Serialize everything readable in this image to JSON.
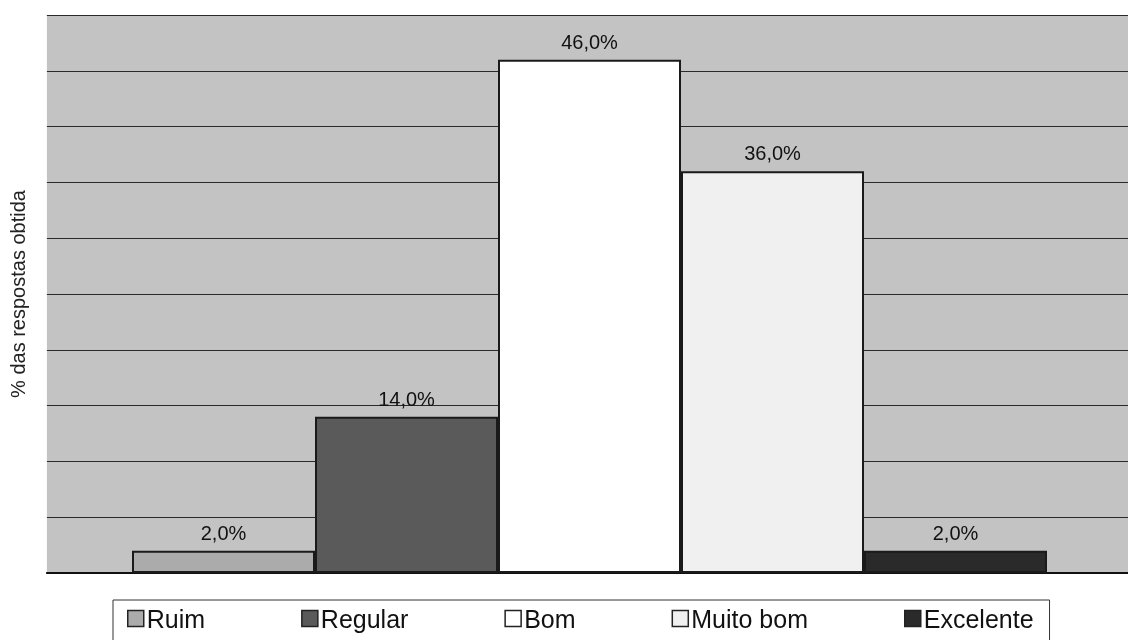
{
  "chart_data": {
    "type": "bar",
    "ylabel": "% das respostas obtida",
    "categories": [
      null,
      null,
      null,
      null,
      null
    ],
    "stacked": true,
    "series": [
      {
        "name": "Ruim",
        "color": "#ababab",
        "values": [
          2,
          null,
          null,
          null,
          null
        ],
        "value_labels": [
          "2,0%",
          null,
          null,
          null,
          null
        ]
      },
      {
        "name": "Regular",
        "color": "#5a5a5a",
        "values": [
          null,
          14,
          null,
          null,
          null
        ],
        "value_labels": [
          null,
          "14,0%",
          null,
          null,
          null
        ]
      },
      {
        "name": "Bom",
        "color": "#ffffff",
        "values": [
          null,
          null,
          46,
          null,
          null
        ],
        "value_labels": [
          null,
          null,
          "46,0%",
          null,
          null
        ]
      },
      {
        "name": "Muito bom",
        "color": "#f0f0f0",
        "values": [
          null,
          null,
          null,
          36,
          null
        ],
        "value_labels": [
          null,
          null,
          null,
          "36,0%",
          null
        ]
      },
      {
        "name": "Excelente",
        "color": "#2a2a2a",
        "values": [
          null,
          null,
          null,
          null,
          2
        ],
        "value_labels": [
          null,
          null,
          null,
          null,
          "2,0%"
        ]
      }
    ],
    "ylim": [
      0,
      50
    ],
    "yticks": [
      {
        "value": 0,
        "label": null
      },
      {
        "value": 5,
        "label": null
      },
      {
        "value": 10,
        "label": null
      },
      {
        "value": 15,
        "label": null
      },
      {
        "value": 20,
        "label": null
      },
      {
        "value": 25,
        "label": null
      },
      {
        "value": 30,
        "label": null
      },
      {
        "value": 35,
        "label": null
      },
      {
        "value": 40,
        "label": null
      },
      {
        "value": 45,
        "label": null
      },
      {
        "value": 50,
        "label": null
      }
    ],
    "grid": "y",
    "legend": "bottom"
  }
}
